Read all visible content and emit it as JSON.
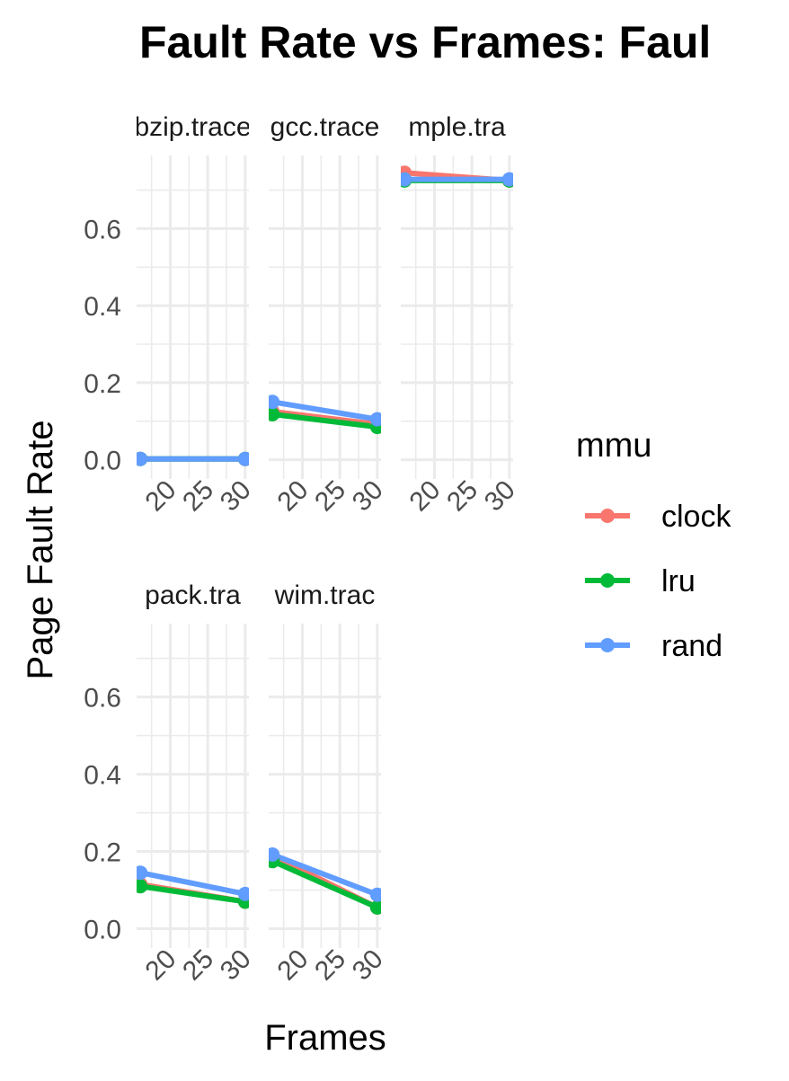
{
  "chart_data": {
    "type": "line",
    "title": "Fault Rate vs Frames: Faul",
    "xlabel": "Frames",
    "ylabel": "Page Fault Rate",
    "legend": {
      "title": "mmu",
      "position": "right",
      "entries": [
        "clock",
        "lru",
        "rand"
      ]
    },
    "colors": {
      "clock": "#F8766D",
      "lru": "#00BA38",
      "rand": "#619CFF"
    },
    "grid": true,
    "xlim": [
      15.5,
      30.5
    ],
    "ylim": [
      -0.05,
      0.79
    ],
    "x_ticks": [
      20,
      25,
      30
    ],
    "x_tick_labels": [
      "20",
      "25",
      "30"
    ],
    "y_ticks": [
      0.0,
      0.2,
      0.4,
      0.6
    ],
    "y_tick_labels": [
      "0.0",
      "0.2",
      "0.4",
      "0.6"
    ],
    "panels": [
      {
        "strip": "bzip.trace",
        "strip_visible": "bzip.trace",
        "series": [
          {
            "name": "clock",
            "x": [
              16,
              30
            ],
            "y": [
              0.002,
              0.002
            ]
          },
          {
            "name": "lru",
            "x": [
              16,
              30
            ],
            "y": [
              0.002,
              0.002
            ]
          },
          {
            "name": "rand",
            "x": [
              16,
              30
            ],
            "y": [
              0.002,
              0.002
            ]
          }
        ]
      },
      {
        "strip": "gcc.trace",
        "strip_visible": "gcc.trace",
        "series": [
          {
            "name": "clock",
            "x": [
              16,
              30
            ],
            "y": [
              0.125,
              0.092
            ]
          },
          {
            "name": "lru",
            "x": [
              16,
              30
            ],
            "y": [
              0.118,
              0.085
            ]
          },
          {
            "name": "rand",
            "x": [
              16,
              30
            ],
            "y": [
              0.15,
              0.105
            ]
          }
        ]
      },
      {
        "strip": "sample.trace",
        "strip_visible": "mple.tra",
        "series": [
          {
            "name": "clock",
            "x": [
              16,
              30
            ],
            "y": [
              0.745,
              0.725
            ]
          },
          {
            "name": "lru",
            "x": [
              16,
              30
            ],
            "y": [
              0.725,
              0.725
            ]
          },
          {
            "name": "rand",
            "x": [
              16,
              30
            ],
            "y": [
              0.728,
              0.728
            ]
          }
        ]
      },
      {
        "strip": "sixpack.trace",
        "strip_visible": "pack.tra",
        "series": [
          {
            "name": "clock",
            "x": [
              16,
              30
            ],
            "y": [
              0.115,
              0.07
            ]
          },
          {
            "name": "lru",
            "x": [
              16,
              30
            ],
            "y": [
              0.11,
              0.07
            ]
          },
          {
            "name": "rand",
            "x": [
              16,
              30
            ],
            "y": [
              0.145,
              0.09
            ]
          }
        ]
      },
      {
        "strip": "swim.trace",
        "strip_visible": "wim.trac",
        "series": [
          {
            "name": "clock",
            "x": [
              16,
              30
            ],
            "y": [
              0.19,
              0.055
            ]
          },
          {
            "name": "lru",
            "x": [
              16,
              30
            ],
            "y": [
              0.175,
              0.055
            ]
          },
          {
            "name": "rand",
            "x": [
              16,
              30
            ],
            "y": [
              0.192,
              0.088
            ]
          }
        ]
      }
    ]
  }
}
